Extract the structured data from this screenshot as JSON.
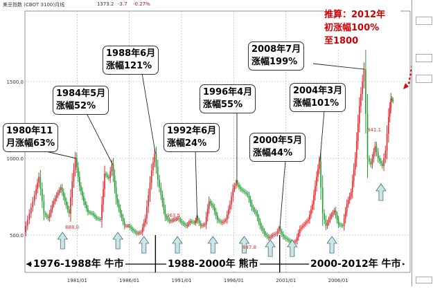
{
  "header": {
    "instrument": "美豆指数 (CBOT 3100)月线",
    "last": "1373.2",
    "change": "-3.7",
    "change_pct": "-0.27%"
  },
  "forecast_note": {
    "line1": "推算：2012年",
    "line2": "初涨幅100%",
    "line3": "至1800"
  },
  "callouts": [
    {
      "id": "c1980",
      "line1": "1980年11",
      "line2": "月涨幅63%"
    },
    {
      "id": "c1984",
      "line1": "1984年5月",
      "line2": "涨幅52%"
    },
    {
      "id": "c1988",
      "line1": "1988年6月",
      "line2": "涨幅121%"
    },
    {
      "id": "c1992",
      "line1": "1992年6月",
      "line2": "涨幅24%"
    },
    {
      "id": "c1996",
      "line1": "1996年4月",
      "line2": "涨幅55%"
    },
    {
      "id": "c2000",
      "line1": "2000年5月",
      "line2": "涨幅44%"
    },
    {
      "id": "c2004",
      "line1": "2004年3月",
      "line2": "涨幅101%"
    },
    {
      "id": "c2008",
      "line1": "2008年7月",
      "line2": "涨幅199%"
    }
  ],
  "eras": [
    {
      "label": "1976-1988年 牛市"
    },
    {
      "label": "1988-2000年 熊市"
    },
    {
      "label": "2000-2012年 牛市"
    }
  ],
  "price_labels": [
    "888.0",
    "363.5",
    "847.8",
    "841.1"
  ],
  "chart_data": {
    "type": "line",
    "title": "美豆指数 (CBOT 3100)月线",
    "x_ticks": [
      "1981/01",
      "1986/01",
      "1991/01",
      "1996/01",
      "2001/01",
      "2006/01"
    ],
    "y_ticks": [
      "500.0",
      "1000.0",
      "1500.0"
    ],
    "ylim": [
      430,
      1640
    ],
    "xlim": [
      1976,
      2011.3
    ],
    "grid": true,
    "series": [
      {
        "x": [
          1976.0,
          1976.5,
          1977.0,
          1977.4,
          1977.9,
          1978.3,
          1978.7,
          1979.1,
          1979.5,
          1979.9,
          1980.3,
          1980.6,
          1980.9,
          1981.3,
          1981.7,
          1982.1,
          1982.5,
          1982.9,
          1983.3,
          1983.7,
          1984.1,
          1984.4,
          1984.8,
          1985.2,
          1985.6,
          1986.0,
          1986.4,
          1986.8,
          1987.2,
          1987.6,
          1987.9,
          1988.2,
          1988.5,
          1988.8,
          1989.1,
          1989.5,
          1989.9,
          1990.3,
          1990.7,
          1991.1,
          1991.5,
          1991.9,
          1992.3,
          1992.5,
          1992.9,
          1993.3,
          1993.7,
          1994.1,
          1994.5,
          1994.9,
          1995.3,
          1995.7,
          1996.0,
          1996.3,
          1996.7,
          1997.1,
          1997.4,
          1997.8,
          1998.2,
          1998.6,
          1999.0,
          1999.4,
          1999.8,
          2000.1,
          2000.4,
          2000.8,
          2001.2,
          2001.6,
          2002.0,
          2002.4,
          2002.8,
          2003.2,
          2003.6,
          2004.0,
          2004.25,
          2004.6,
          2004.9,
          2005.3,
          2005.7,
          2006.1,
          2006.5,
          2006.9,
          2007.3,
          2007.7,
          2008.1,
          2008.55,
          2008.9,
          2009.2,
          2009.6,
          2009.9,
          2010.3,
          2010.6,
          2010.9,
          2011.1,
          2011.3
        ],
        "y": [
          520,
          640,
          760,
          880,
          640,
          610,
          700,
          760,
          810,
          720,
          640,
          850,
          1000,
          820,
          720,
          650,
          640,
          610,
          600,
          900,
          870,
          960,
          740,
          640,
          560,
          560,
          530,
          510,
          520,
          610,
          760,
          920,
          1030,
          860,
          760,
          620,
          590,
          600,
          610,
          580,
          560,
          590,
          580,
          610,
          560,
          570,
          720,
          680,
          600,
          580,
          600,
          700,
          800,
          840,
          800,
          780,
          760,
          680,
          640,
          560,
          510,
          480,
          500,
          510,
          540,
          490,
          470,
          450,
          460,
          540,
          570,
          600,
          700,
          880,
          980,
          640,
          560,
          620,
          660,
          570,
          560,
          700,
          780,
          1000,
          1340,
          1580,
          1000,
          960,
          1080,
          1000,
          950,
          1050,
          1270,
          1390,
          1373
        ]
      }
    ]
  },
  "forecast_arrow": {
    "x": [
      2011.3,
      2012.3
    ],
    "y": [
      1373,
      1800
    ]
  }
}
